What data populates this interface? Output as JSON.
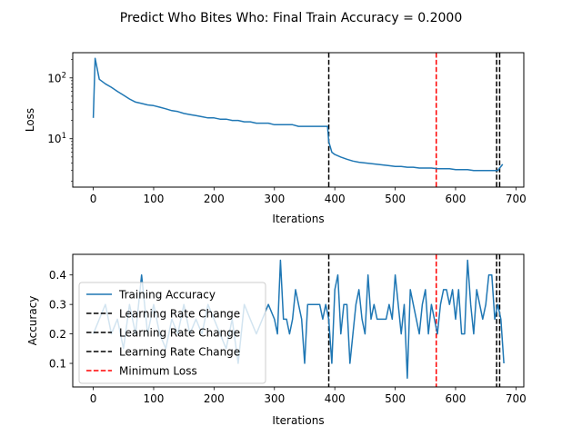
{
  "title": "Predict Who Bites Who: Final Train Accuracy = 0.2000",
  "chart_data": [
    {
      "type": "line",
      "xlabel": "Iterations",
      "ylabel": "Loss",
      "yscale": "log",
      "xlim": [
        -34,
        713
      ],
      "ylim": [
        1.6,
        260
      ],
      "xticks": [
        0,
        100,
        200,
        300,
        400,
        500,
        600,
        700
      ],
      "yticks": [
        {
          "value": 10,
          "base": "10",
          "exp": "1"
        },
        {
          "value": 100,
          "base": "10",
          "exp": "2"
        }
      ],
      "grid": false,
      "series": [
        {
          "color": "#1f77b4",
          "x": [
            0,
            3,
            10,
            20,
            30,
            40,
            50,
            60,
            70,
            80,
            90,
            100,
            110,
            120,
            130,
            140,
            150,
            160,
            170,
            180,
            190,
            200,
            210,
            220,
            230,
            240,
            250,
            260,
            270,
            280,
            290,
            300,
            310,
            320,
            330,
            340,
            350,
            360,
            370,
            380,
            388,
            390,
            395,
            400,
            410,
            420,
            430,
            440,
            450,
            460,
            470,
            480,
            490,
            500,
            510,
            520,
            530,
            540,
            550,
            560,
            570,
            580,
            590,
            600,
            610,
            620,
            630,
            640,
            650,
            660,
            670,
            678
          ],
          "values": [
            22,
            210,
            95,
            80,
            70,
            60,
            52,
            45,
            40,
            38,
            36,
            35,
            33,
            31,
            29,
            28,
            26,
            25,
            24,
            23,
            22,
            22,
            21,
            21,
            20,
            20,
            19,
            19,
            18,
            18,
            18,
            17,
            17,
            17,
            17,
            16,
            16,
            16,
            16,
            16,
            16,
            9,
            6,
            5.5,
            5,
            4.6,
            4.3,
            4.1,
            4.0,
            3.9,
            3.8,
            3.7,
            3.6,
            3.5,
            3.5,
            3.4,
            3.4,
            3.3,
            3.3,
            3.3,
            3.2,
            3.2,
            3.2,
            3.1,
            3.1,
            3.1,
            3.0,
            3.0,
            3.0,
            3.0,
            3.0,
            3.8
          ]
        }
      ],
      "vlines": [
        {
          "x": 390,
          "color": "#000000"
        },
        {
          "x": 568,
          "color": "#ff0000"
        },
        {
          "x": 668,
          "color": "#000000"
        },
        {
          "x": 673,
          "color": "#000000"
        }
      ]
    },
    {
      "type": "line",
      "xlabel": "Iterations",
      "ylabel": "Accuracy",
      "xlim": [
        -34,
        713
      ],
      "ylim": [
        0.02,
        0.47
      ],
      "xticks": [
        0,
        100,
        200,
        300,
        400,
        500,
        600,
        700
      ],
      "yticks": [
        0.1,
        0.2,
        0.3,
        0.4
      ],
      "grid": false,
      "series": [
        {
          "name": "Training Accuracy",
          "color": "#1f77b4",
          "x": [
            0,
            10,
            20,
            30,
            40,
            50,
            60,
            70,
            80,
            90,
            100,
            110,
            120,
            130,
            140,
            150,
            160,
            170,
            180,
            190,
            200,
            210,
            220,
            230,
            240,
            250,
            260,
            270,
            280,
            290,
            300,
            305,
            310,
            315,
            320,
            325,
            330,
            335,
            340,
            345,
            350,
            355,
            360,
            365,
            370,
            375,
            380,
            385,
            390,
            395,
            400,
            405,
            410,
            415,
            420,
            425,
            430,
            435,
            440,
            445,
            450,
            455,
            460,
            465,
            470,
            475,
            480,
            485,
            490,
            495,
            500,
            505,
            510,
            515,
            520,
            525,
            530,
            535,
            540,
            545,
            550,
            555,
            560,
            565,
            570,
            575,
            580,
            585,
            590,
            595,
            600,
            605,
            610,
            615,
            620,
            625,
            630,
            635,
            640,
            645,
            650,
            655,
            660,
            665,
            670,
            675,
            680
          ],
          "values": [
            0.2,
            0.25,
            0.3,
            0.2,
            0.25,
            0.15,
            0.3,
            0.2,
            0.4,
            0.2,
            0.3,
            0.2,
            0.15,
            0.25,
            0.2,
            0.3,
            0.2,
            0.25,
            0.2,
            0.3,
            0.25,
            0.2,
            0.15,
            0.25,
            0.1,
            0.3,
            0.25,
            0.2,
            0.25,
            0.3,
            0.25,
            0.2,
            0.45,
            0.25,
            0.25,
            0.2,
            0.25,
            0.35,
            0.3,
            0.25,
            0.1,
            0.3,
            0.3,
            0.3,
            0.3,
            0.3,
            0.25,
            0.3,
            0.25,
            0.1,
            0.35,
            0.4,
            0.2,
            0.3,
            0.3,
            0.1,
            0.2,
            0.3,
            0.35,
            0.25,
            0.2,
            0.4,
            0.25,
            0.3,
            0.25,
            0.25,
            0.25,
            0.25,
            0.3,
            0.25,
            0.4,
            0.3,
            0.2,
            0.3,
            0.05,
            0.35,
            0.3,
            0.25,
            0.2,
            0.3,
            0.35,
            0.2,
            0.3,
            0.25,
            0.2,
            0.3,
            0.35,
            0.35,
            0.3,
            0.35,
            0.25,
            0.35,
            0.2,
            0.2,
            0.45,
            0.3,
            0.2,
            0.35,
            0.3,
            0.25,
            0.3,
            0.4,
            0.4,
            0.25,
            0.3,
            0.25,
            0.1
          ]
        }
      ],
      "vlines": [
        {
          "x": 390,
          "color": "#000000"
        },
        {
          "x": 568,
          "color": "#ff0000"
        },
        {
          "x": 668,
          "color": "#000000"
        },
        {
          "x": 673,
          "color": "#000000"
        }
      ],
      "legend": {
        "position": "lower-left",
        "entries": [
          {
            "label": "Training Accuracy",
            "color": "#1f77b4",
            "style": "solid"
          },
          {
            "label": "Learning Rate Change",
            "color": "#000000",
            "style": "dashed"
          },
          {
            "label": "Learning Rate Change",
            "color": "#000000",
            "style": "dashed"
          },
          {
            "label": "Learning Rate Change",
            "color": "#000000",
            "style": "dashed"
          },
          {
            "label": "Minimum Loss",
            "color": "#ff0000",
            "style": "dashed"
          }
        ]
      }
    }
  ]
}
